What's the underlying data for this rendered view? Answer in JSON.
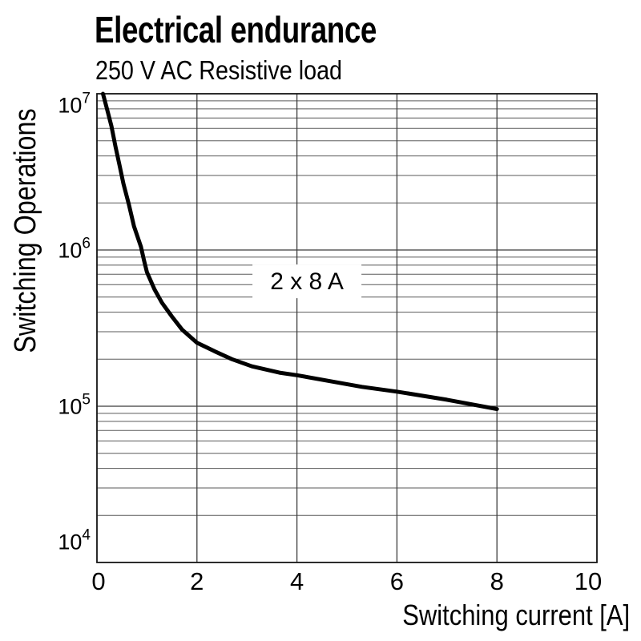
{
  "chart_data": {
    "type": "line",
    "title": "Electrical endurance",
    "subtitle": "250 V AC Resistive load",
    "xlabel": "Switching current [A]",
    "ylabel": "Switching Operations",
    "x_axis": {
      "scale": "linear",
      "min": 0,
      "max": 10,
      "ticks": [
        {
          "value": 0,
          "label": "0"
        },
        {
          "value": 2,
          "label": "2"
        },
        {
          "value": 4,
          "label": "4"
        },
        {
          "value": 6,
          "label": "6"
        },
        {
          "value": 8,
          "label": "8"
        },
        {
          "value": 10,
          "label": "10"
        }
      ]
    },
    "y_axis": {
      "scale": "log",
      "min": 10000,
      "max": 10000000,
      "ticks": [
        {
          "value": 10000000,
          "label": "10^7"
        },
        {
          "value": 1000000,
          "label": "10^6"
        },
        {
          "value": 100000,
          "label": "10^5"
        },
        {
          "value": 10000,
          "label": "10^4"
        }
      ],
      "minor_gridlines": "log decades, multiples 2-9"
    },
    "grid": true,
    "legend_position": "none",
    "annotation": {
      "text": "2 x 8 A",
      "x": 4.2,
      "y": 630000
    },
    "series": [
      {
        "name": "2 x 8 A",
        "points": [
          [
            0.12,
            10000000
          ],
          [
            0.2,
            8000000
          ],
          [
            0.29,
            6200000
          ],
          [
            0.37,
            4600000
          ],
          [
            0.45,
            3500000
          ],
          [
            0.53,
            2650000
          ],
          [
            0.64,
            1950000
          ],
          [
            0.74,
            1420000
          ],
          [
            0.88,
            1050000
          ],
          [
            0.94,
            860000
          ],
          [
            1.0,
            720000
          ],
          [
            1.15,
            560000
          ],
          [
            1.3,
            460000
          ],
          [
            1.5,
            375000
          ],
          [
            1.7,
            310000
          ],
          [
            2.0,
            255000
          ],
          [
            2.35,
            225000
          ],
          [
            2.7,
            200000
          ],
          [
            3.1,
            180000
          ],
          [
            3.65,
            164000
          ],
          [
            4.0,
            158000
          ],
          [
            4.75,
            143000
          ],
          [
            5.3,
            133000
          ],
          [
            6.0,
            124000
          ],
          [
            7.0,
            110000
          ],
          [
            8.0,
            96000
          ]
        ]
      }
    ],
    "colors": {
      "curve": "#000000",
      "minor_grid": "#5a5a5a",
      "major_grid": "#3c3c3c",
      "frame": "#1a1a1a",
      "text": "#000000",
      "background": "#ffffff"
    }
  }
}
